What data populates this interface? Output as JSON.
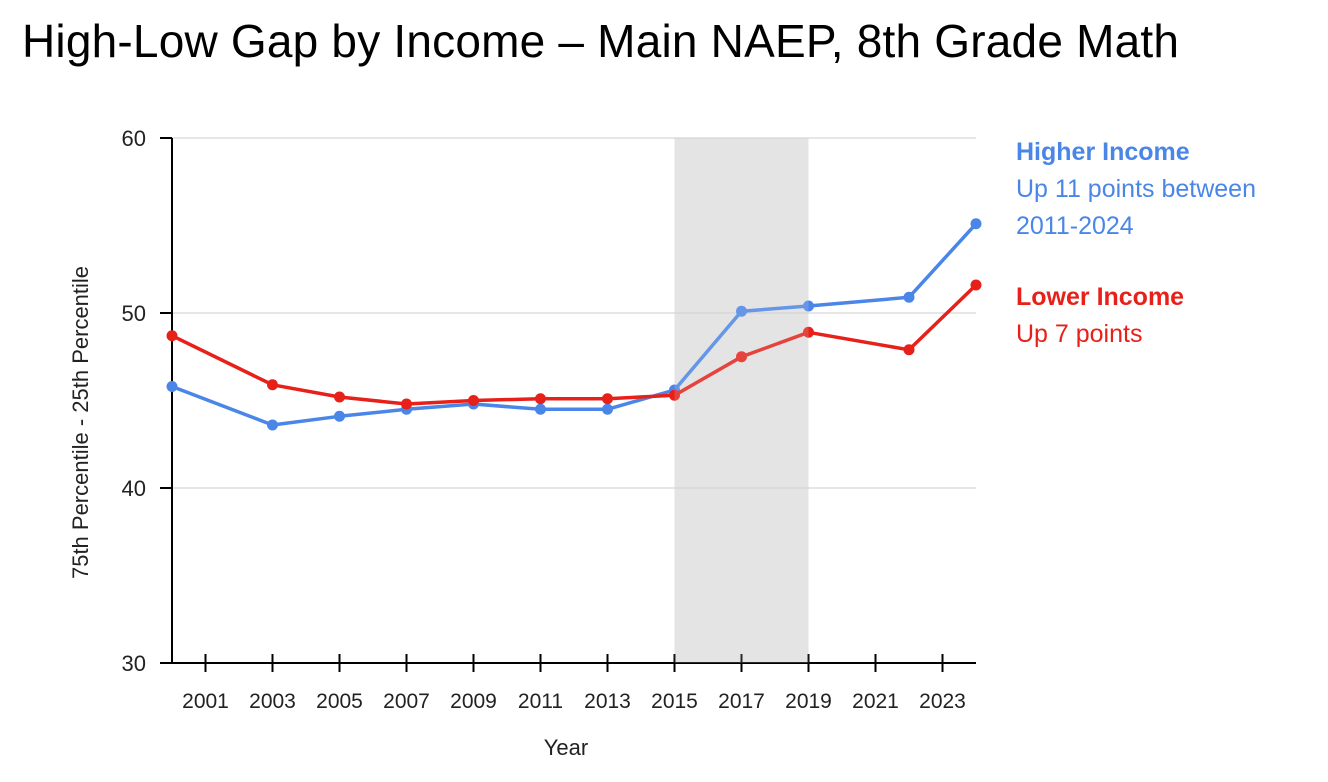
{
  "title": "High-Low Gap by Income – Main NAEP, 8th Grade Math",
  "legend": {
    "higher": {
      "name": "Higher Income",
      "desc": "Up 11 points between 2011-2024",
      "color": "#4a86e8"
    },
    "lower": {
      "name": "Lower Income",
      "desc": "Up 7 points",
      "color": "#e8201a"
    }
  },
  "chart_data": {
    "type": "line",
    "title": "High-Low Gap by Income – Main NAEP, 8th Grade Math",
    "xlabel": "Year",
    "ylabel": "75th Percentile - 25th Percentile",
    "xlim": [
      2000,
      2024
    ],
    "ylim": [
      30,
      60
    ],
    "x_ticks": [
      2001,
      2003,
      2005,
      2007,
      2009,
      2011,
      2013,
      2015,
      2017,
      2019,
      2021,
      2023
    ],
    "y_ticks": [
      30,
      40,
      50,
      60
    ],
    "grid": true,
    "shaded_band": {
      "from": 2015,
      "to": 2019,
      "color": "#e5e5e5"
    },
    "series": [
      {
        "name": "Higher Income",
        "color": "#4a86e8",
        "points": [
          [
            2000,
            45.8
          ],
          [
            2003,
            43.6
          ],
          [
            2005,
            44.1
          ],
          [
            2007,
            44.5
          ],
          [
            2009,
            44.8
          ],
          [
            2011,
            44.5
          ],
          [
            2013,
            44.5
          ],
          [
            2015,
            45.6
          ],
          [
            2017,
            50.1
          ],
          [
            2019,
            50.4
          ],
          [
            2022,
            50.9
          ],
          [
            2024,
            55.1
          ]
        ]
      },
      {
        "name": "Lower Income",
        "color": "#e8201a",
        "points": [
          [
            2000,
            48.7
          ],
          [
            2003,
            45.9
          ],
          [
            2005,
            45.2
          ],
          [
            2007,
            44.8
          ],
          [
            2009,
            45.0
          ],
          [
            2011,
            45.1
          ],
          [
            2013,
            45.1
          ],
          [
            2015,
            45.3
          ],
          [
            2017,
            47.5
          ],
          [
            2019,
            48.9
          ],
          [
            2022,
            47.9
          ],
          [
            2024,
            51.6
          ]
        ]
      }
    ]
  }
}
